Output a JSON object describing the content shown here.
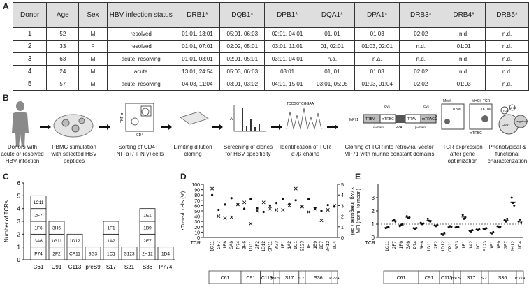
{
  "panels": {
    "a": "A",
    "b": "B",
    "c": "C",
    "d": "D",
    "e": "E"
  },
  "table": {
    "headers": [
      "Donor",
      "Age",
      "Sex",
      "HBV infection status",
      "DRB1*",
      "DQB1*",
      "DPB1*",
      "DQA1*",
      "DPA1*",
      "DRB3*",
      "DRB4*",
      "DRB5*"
    ],
    "rows": [
      [
        "1",
        "52",
        "M",
        "resolved",
        "01:01, 13:01",
        "05:01, 06:03",
        "02:01, 04:01",
        "01, 01",
        "01:03",
        "02:02",
        "n.d.",
        "n.d."
      ],
      [
        "2",
        "33",
        "F",
        "resolved",
        "01:01, 07:01",
        "02:02, 05:01",
        "03:01, 11:01",
        "01, 02:01",
        "01:03, 02:01",
        "n.d.",
        "01:01",
        "n.d."
      ],
      [
        "3",
        "63",
        "M",
        "acute, resolving",
        "01:01, 03:01",
        "02:01, 05:01",
        "03:01, 04:01",
        "n.a.",
        "n.a.",
        "n.d.",
        "n.d.",
        "n.d."
      ],
      [
        "4",
        "24",
        "M",
        "acute",
        "13:01, 24:54",
        "05:03, 06:03",
        "03:01",
        "01, 01",
        "01:03",
        "02:02",
        "n.d.",
        "n.d."
      ],
      [
        "5",
        "57",
        "M",
        "acute, resolving",
        "04:03, 11:04",
        "03:01, 03:02",
        "04:01, 15:01",
        "03:01, 05:05",
        "01:03, 01:04",
        "02:02",
        "01:03",
        "n.d."
      ]
    ]
  },
  "workflow": {
    "steps": [
      "Donors with acute or resolved HBV infection",
      "PBMC stimulation with selected HBV peptides",
      "Sorting of CD4+ TNF-α+/ IFN-γ+cells",
      "Limiting dilution cloning",
      "Screening of clones for HBV specificity",
      "Identification of TCR α-/β-chains",
      "Cloning of TCR into retroviral vector MP71 with murine constant domains",
      "TCR expression after gene optimization",
      "Phenotypical & functional characterization"
    ],
    "facs_axes": {
      "y": "TNF-α",
      "x": "CD4"
    },
    "screen_axis": "A",
    "sequence": "TCCGGTCGGAA",
    "vector_labels": [
      "MP71",
      "TRBV",
      "mTRBC",
      "P2A",
      "TRAV",
      "mTRAC",
      "Cys",
      "Cys",
      "α-chain",
      "β-chain"
    ],
    "expr_labels": {
      "mock": "Mock",
      "tcr": "MHCII-TCR",
      "mock_pct": "0.8%",
      "tcr_pct": "76.0%",
      "y": "FSC",
      "x": "mTRBC"
    },
    "cell_labels": [
      "CD4+",
      "target cell",
      "TCR",
      "MHC"
    ]
  },
  "chart_data": [
    {
      "type": "bar",
      "panel": "C",
      "ylabel": "Number of TCRs",
      "ylim": [
        0,
        6
      ],
      "yticks": [
        0,
        1,
        2,
        3,
        4,
        5,
        6
      ],
      "categories": [
        "C61",
        "C91",
        "C113",
        "preS9",
        "S17",
        "S21",
        "S36",
        "P774"
      ],
      "stacks": [
        [
          "P74",
          "3A6",
          "1F6",
          "2F7",
          "1C11"
        ],
        [
          "2F2",
          "1G11",
          "3H6"
        ],
        [
          "CP11",
          "1D12"
        ],
        [
          "3G3"
        ],
        [
          "1C1",
          "1A2",
          "1F1"
        ],
        [
          "S123"
        ],
        [
          "2H12",
          "2E7",
          "1B9",
          "1E1"
        ],
        [
          "1D4"
        ]
      ]
    },
    {
      "type": "scatter",
      "panel": "D",
      "ylabel_left": "Transd. cells (%)",
      "ylabel_right": "Avg. integrates / cell",
      "ylim_left": [
        0,
        100
      ],
      "yticks_left": [
        0,
        10,
        20,
        30,
        40,
        50,
        60,
        70,
        80,
        90,
        100
      ],
      "ylim_right": [
        0,
        5
      ],
      "yticks_right": [
        0,
        1,
        2,
        3,
        4,
        5
      ],
      "x_prefix": "TCR",
      "categories": [
        "1C11",
        "2F7",
        "1F6",
        "3A6",
        "P74",
        "3H6",
        "1G11",
        "2F2",
        "1D12",
        "CP11",
        "3G3",
        "1F1",
        "1A2",
        "1C1",
        "S123",
        "1E1",
        "1B9",
        "2E7",
        "2H12",
        "1D4"
      ],
      "series": [
        {
          "name": "Transd. cells (%)",
          "marker": "dot",
          "values": [
            80,
            52,
            62,
            74,
            62,
            54,
            72,
            55,
            48,
            60,
            65,
            73,
            64,
            70,
            58,
            72,
            55,
            50,
            61,
            58
          ]
        },
        {
          "name": "Avg. integrates / cell",
          "marker": "x",
          "values": [
            4.6,
            2.0,
            1.8,
            1.9,
            3.1,
            3.3,
            1.3,
            2.5,
            3.3,
            2.7,
            2.6,
            2.6,
            3.0,
            4.6,
            2.9,
            2.4,
            2.7,
            1.6,
            2.6,
            3.0
          ]
        }
      ],
      "groups": [
        {
          "label": "C61",
          "count": 5
        },
        {
          "label": "C91",
          "count": 3
        },
        {
          "label": "C113",
          "count": 2
        },
        {
          "label": "pre S9",
          "count": 1
        },
        {
          "label": "S17",
          "count": 3
        },
        {
          "label": "S 21",
          "count": 1
        },
        {
          "label": "S36",
          "count": 4
        },
        {
          "label": "P 774",
          "count": 1
        }
      ]
    },
    {
      "type": "scatter",
      "panel": "E",
      "ylabel": "MFI (norm. to mean)",
      "ylim": [
        0,
        4
      ],
      "yticks_labels": [
        "0",
        "1",
        "2",
        "3"
      ],
      "x_prefix": "TCR",
      "categories": [
        "1C11",
        "2F7",
        "1F6",
        "3A6",
        "P74",
        "3H6",
        "1G11",
        "2F2",
        "1D12",
        "CP11",
        "3G3",
        "1F1",
        "1A2",
        "1C1",
        "S123",
        "1E1",
        "1B9",
        "2E7",
        "2H12",
        "1D4"
      ],
      "values": [
        [
          0.7,
          0.75,
          0.8
        ],
        [
          1.25,
          1.3,
          1.2
        ],
        [
          0.85,
          0.95,
          1.0
        ],
        [
          1.6,
          1.45,
          1.5
        ],
        [
          0.7,
          0.65,
          0.72
        ],
        [
          1.1,
          1.0,
          1.05
        ],
        [
          1.4,
          1.25,
          1.2
        ],
        [
          0.9,
          0.85,
          0.95
        ],
        [
          0.25,
          0.2,
          0.35
        ],
        [
          0.75,
          0.85,
          0.8
        ],
        [
          0.75,
          0.8,
          0.78
        ],
        [
          1.7,
          1.4,
          1.5
        ],
        [
          0.5,
          0.45,
          0.55
        ],
        [
          0.6,
          0.55,
          0.62
        ],
        [
          0.65,
          0.6,
          0.7
        ],
        [
          0.35,
          0.3,
          0.4
        ],
        [
          0.85,
          0.75,
          0.8
        ],
        [
          1.3,
          1.2,
          1.4
        ],
        [
          3.0,
          2.6,
          2.4
        ],
        [
          1.2,
          1.35,
          1.1
        ]
      ],
      "reference_line": 1,
      "groups": [
        {
          "label": "C61",
          "count": 5
        },
        {
          "label": "C91",
          "count": 3
        },
        {
          "label": "C113",
          "count": 2
        },
        {
          "label": "pre S9",
          "count": 1
        },
        {
          "label": "S17",
          "count": 3
        },
        {
          "label": "S 21",
          "count": 1
        },
        {
          "label": "S36",
          "count": 4
        },
        {
          "label": "P 774",
          "count": 1
        }
      ]
    }
  ]
}
